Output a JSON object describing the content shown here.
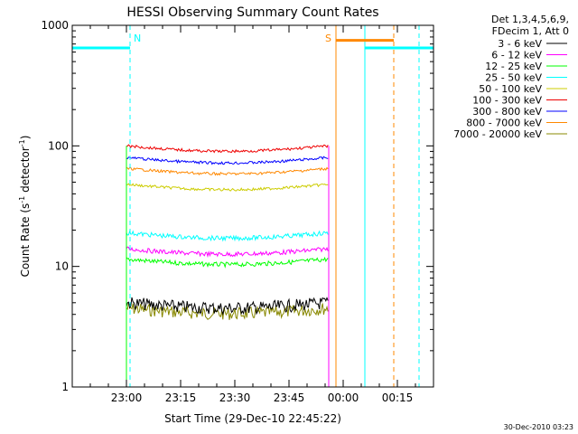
{
  "chart_data": {
    "type": "line",
    "title": "HESSI Observing Summary Count Rates",
    "xlabel": "Start Time (29-Dec-10 22:45:22)",
    "ylabel_main": "Count Rate (s",
    "ylabel_sup1": "-1",
    "ylabel_mid": " detector",
    "ylabel_sup2": "-1",
    "ylabel_end": ")",
    "yscale": "log",
    "ylim": [
      1,
      1000
    ],
    "yticks": [
      "1",
      "10",
      "100",
      "1000"
    ],
    "xlim": [
      "22:45",
      "00:25"
    ],
    "xticks": [
      "23:00",
      "23:15",
      "23:30",
      "23:45",
      "00:00",
      "00:15"
    ],
    "grid": false,
    "legend_header": [
      "Det 1,3,4,5,6,9,",
      "FDecim 1, Att 0"
    ],
    "legend_position": "right",
    "series": [
      {
        "name": "3 - 6 keV",
        "color": "#000000",
        "value": 5
      },
      {
        "name": "6 - 12 keV",
        "color": "#ff00ff",
        "value": 14
      },
      {
        "name": "12 - 25 keV",
        "color": "#00ff00",
        "value": 11.5
      },
      {
        "name": "25 - 50 keV",
        "color": "#00ffff",
        "value": 19
      },
      {
        "name": "50 - 100 keV",
        "color": "#cccc00",
        "value": 48
      },
      {
        "name": "100 - 300 keV",
        "color": "#ee0000",
        "value": 100
      },
      {
        "name": "300 - 800 keV",
        "color": "#0000ff",
        "value": 80
      },
      {
        "name": "800 - 7000 keV",
        "color": "#ff8800",
        "value": 65
      },
      {
        "name": "7000 - 20000 keV",
        "color": "#888800",
        "value": 4.5
      }
    ],
    "series_time_range": [
      "23:00",
      "23:56"
    ],
    "annotations": [
      {
        "label": "N",
        "color": "#00ffff",
        "flag_start": "22:45",
        "flag_end": "23:01",
        "flag_value": 650,
        "marker_time": "23:01"
      },
      {
        "label": "N",
        "color": "#00ffff",
        "flag_start": "00:06",
        "flag_end": "00:25",
        "flag_value": 650,
        "marker_time": "00:21"
      },
      {
        "label": "S",
        "color": "#ff8800",
        "flag_start": "23:58",
        "flag_end": "00:14",
        "flag_value": 750,
        "marker_time": "00:14"
      }
    ],
    "footer_date": "30-Dec-2010 03:23"
  }
}
